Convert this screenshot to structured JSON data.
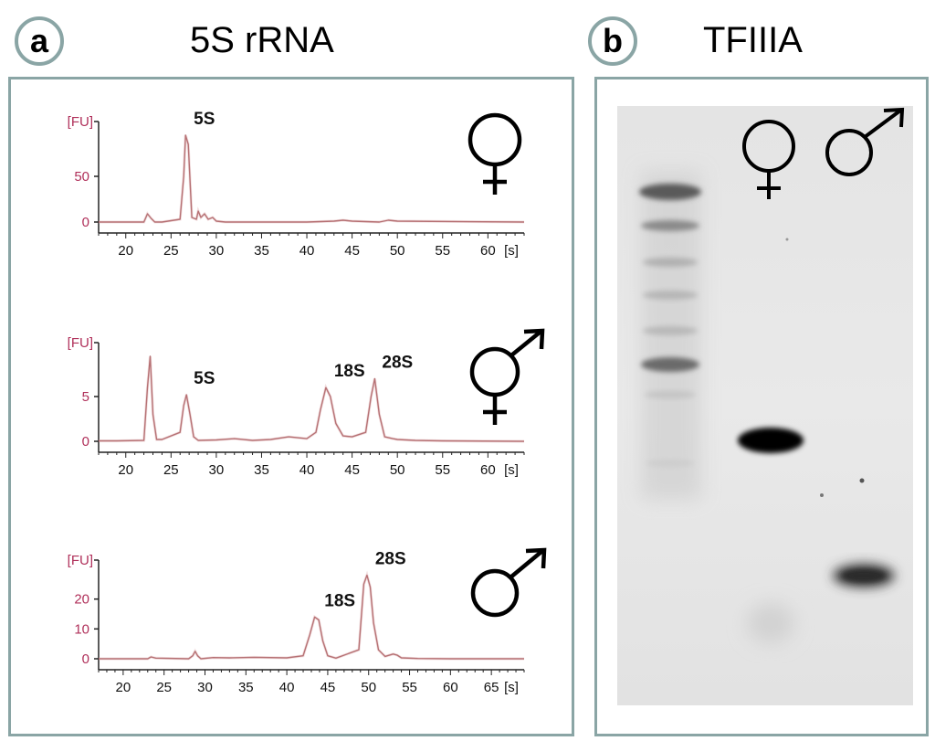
{
  "panel_a": {
    "letter": "a",
    "title": "5S rRNA"
  },
  "panel_b": {
    "letter": "b",
    "title": "TFIIIA"
  },
  "chart_data": [
    {
      "type": "line",
      "symbol": "female",
      "ylabel": "[FU]",
      "xlabel": "[s]",
      "x_ticks": [
        20,
        25,
        30,
        35,
        40,
        45,
        50,
        55,
        60
      ],
      "y_ticks": [
        0,
        50
      ],
      "ylim": [
        0,
        100
      ],
      "xlim": [
        17,
        64
      ],
      "series": [
        {
          "x": [
            17,
            22.0,
            22.4,
            22.8,
            23.2,
            24,
            26.0,
            26.4,
            26.6,
            26.9,
            27.3,
            27.8,
            28.0,
            28.3,
            28.7,
            29.1,
            29.6,
            30,
            31,
            32,
            40,
            43,
            44,
            45,
            48,
            49,
            50,
            64
          ],
          "y": [
            0,
            0,
            9,
            4,
            0,
            0,
            3,
            50,
            95,
            85,
            5,
            3,
            12,
            5,
            9,
            3,
            5,
            1,
            0,
            0,
            0,
            1,
            2,
            1,
            0,
            2,
            1,
            0
          ]
        }
      ],
      "annotations": [
        {
          "text": "5S",
          "x": 26.7
        }
      ]
    },
    {
      "type": "line",
      "symbol": "hermaphrodite",
      "ylabel": "[FU]",
      "xlabel": "[s]",
      "x_ticks": [
        20,
        25,
        30,
        35,
        40,
        45,
        50,
        55,
        60
      ],
      "y_ticks": [
        0,
        5
      ],
      "ylim": [
        0,
        10
      ],
      "xlim": [
        17,
        64
      ],
      "series": [
        {
          "x": [
            17,
            19,
            22.0,
            22.4,
            22.7,
            23.0,
            23.4,
            24,
            26.0,
            26.4,
            26.7,
            27.1,
            27.5,
            28,
            30,
            32,
            34,
            36,
            38,
            40,
            41.0,
            41.5,
            42.1,
            42.6,
            43.2,
            44,
            45,
            46.5,
            47.1,
            47.5,
            48.0,
            48.6,
            49.5,
            50,
            52,
            55,
            64
          ],
          "y": [
            0.05,
            0.05,
            0.1,
            6,
            9.5,
            3,
            0.2,
            0.2,
            1,
            4,
            5.2,
            3,
            0.5,
            0.1,
            0.15,
            0.3,
            0.1,
            0.2,
            0.5,
            0.3,
            1,
            3.5,
            6,
            5,
            2,
            0.6,
            0.5,
            1,
            5,
            7,
            3,
            0.5,
            0.3,
            0.2,
            0.1,
            0.05,
            0
          ]
        }
      ],
      "annotations": [
        {
          "text": "5S",
          "x": 26.7
        },
        {
          "text": "18S",
          "x": 42.2
        },
        {
          "text": "28S",
          "x": 47.5
        }
      ]
    },
    {
      "type": "line",
      "symbol": "male",
      "ylabel": "[FU]",
      "xlabel": "[s]",
      "x_ticks": [
        20,
        25,
        30,
        35,
        40,
        45,
        50,
        55,
        60,
        65
      ],
      "y_ticks": [
        0,
        10,
        20
      ],
      "ylim": [
        0,
        30
      ],
      "xlim": [
        17,
        69
      ],
      "series": [
        {
          "x": [
            17,
            23,
            23.4,
            24,
            28,
            28.5,
            28.8,
            29.1,
            29.5,
            31,
            33,
            36,
            40,
            42.0,
            42.8,
            43.4,
            43.9,
            44.4,
            45.0,
            46,
            48.8,
            49.4,
            49.8,
            50.2,
            50.6,
            51.2,
            52,
            53,
            53.5,
            54,
            56,
            60,
            69
          ],
          "y": [
            0,
            0,
            0.6,
            0.2,
            0,
            1,
            2.5,
            1,
            0,
            0.4,
            0.3,
            0.5,
            0.3,
            1,
            8,
            14,
            13,
            6,
            1,
            0.2,
            3,
            25,
            28,
            24,
            12,
            3,
            0.8,
            1.6,
            1.2,
            0.3,
            0.1,
            0,
            0
          ]
        }
      ],
      "annotations": [
        {
          "text": "18S",
          "x": 43.7
        },
        {
          "text": "28S",
          "x": 49.9
        }
      ]
    }
  ],
  "gel": {
    "lanes": [
      "ladder",
      "female",
      "male"
    ],
    "symbols": [
      "female",
      "male"
    ]
  }
}
